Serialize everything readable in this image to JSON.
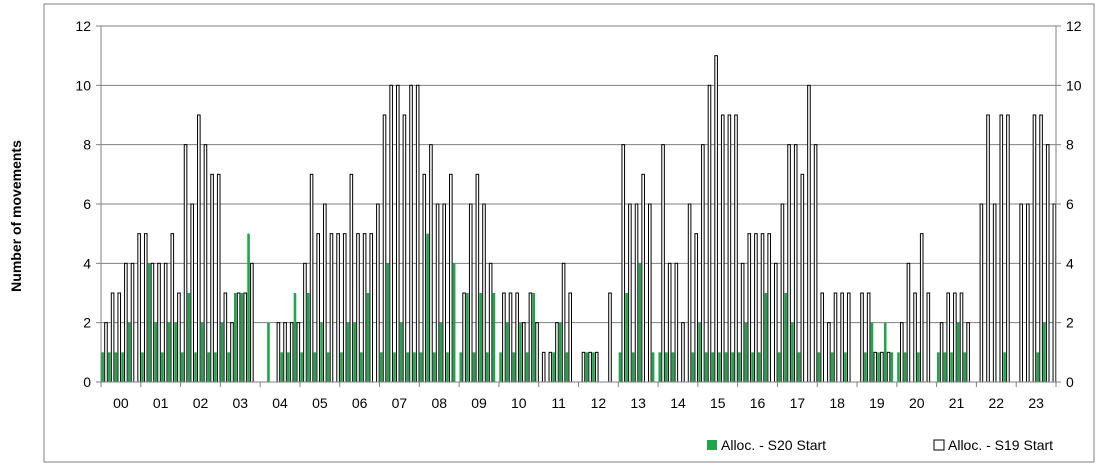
{
  "colors": {
    "s20_fill": "#1fa64a",
    "s19_fill": "#ffffff",
    "s19_stroke": "#000000",
    "axis": "#808080",
    "grid": "#808080"
  },
  "chart_data": {
    "type": "bar",
    "ylabel": "Number of movements",
    "ylim": [
      0,
      12
    ],
    "yticks": [
      0,
      2,
      4,
      6,
      8,
      10,
      12
    ],
    "secondary_yticks": [
      0,
      2,
      4,
      6,
      8,
      10,
      12
    ],
    "grid": "horizontal",
    "legend": "bottom-right",
    "categories": [
      "00",
      "01",
      "02",
      "03",
      "04",
      "05",
      "06",
      "07",
      "08",
      "09",
      "10",
      "11",
      "12",
      "13",
      "14",
      "15",
      "16",
      "17",
      "18",
      "19",
      "20",
      "21",
      "22",
      "23"
    ],
    "slots_per_category": 12,
    "series": [
      {
        "name": "Alloc. - S20 Start",
        "values": [
          [
            1,
            0,
            1,
            0,
            1,
            0,
            1,
            0,
            2,
            0,
            0,
            0
          ],
          [
            1,
            0,
            4,
            0,
            2,
            0,
            1,
            0,
            2,
            0,
            2,
            0
          ],
          [
            1,
            0,
            3,
            0,
            1,
            0,
            2,
            0,
            1,
            0,
            1,
            0
          ],
          [
            2,
            0,
            1,
            0,
            3,
            0,
            3,
            0,
            5,
            0,
            0,
            0
          ],
          [
            0,
            0,
            2,
            0,
            0,
            0,
            1,
            0,
            1,
            0,
            3,
            0
          ],
          [
            1,
            0,
            3,
            0,
            1,
            0,
            2,
            0,
            1,
            0,
            0,
            0
          ],
          [
            1,
            0,
            2,
            0,
            2,
            0,
            1,
            0,
            3,
            0,
            0,
            0
          ],
          [
            1,
            0,
            4,
            0,
            1,
            0,
            2,
            0,
            1,
            0,
            1,
            0
          ],
          [
            1,
            0,
            5,
            0,
            1,
            0,
            2,
            0,
            1,
            0,
            4,
            0
          ],
          [
            1,
            0,
            3,
            0,
            1,
            0,
            3,
            0,
            1,
            0,
            3,
            0
          ],
          [
            1,
            0,
            2,
            0,
            1,
            0,
            2,
            0,
            1,
            0,
            3,
            0
          ],
          [
            0,
            0,
            0,
            0,
            1,
            0,
            2,
            0,
            1,
            0,
            0,
            0
          ],
          [
            0,
            0,
            1,
            0,
            1,
            0,
            0,
            0,
            0,
            0,
            0,
            0
          ],
          [
            1,
            0,
            3,
            0,
            1,
            0,
            4,
            0,
            0,
            0,
            1,
            0
          ],
          [
            1,
            0,
            1,
            0,
            1,
            0,
            0,
            0,
            0,
            0,
            1,
            0
          ],
          [
            2,
            0,
            1,
            0,
            1,
            0,
            1,
            0,
            1,
            0,
            1,
            0
          ],
          [
            1,
            0,
            2,
            0,
            1,
            0,
            1,
            0,
            3,
            0,
            0,
            0
          ],
          [
            1,
            0,
            3,
            0,
            2,
            0,
            1,
            0,
            0,
            0,
            0,
            0
          ],
          [
            1,
            0,
            0,
            0,
            1,
            0,
            0,
            0,
            1,
            0,
            0,
            0
          ],
          [
            0,
            0,
            1,
            0,
            2,
            0,
            1,
            0,
            2,
            0,
            1,
            0
          ],
          [
            1,
            0,
            1,
            0,
            0,
            0,
            1,
            0,
            0,
            0,
            0,
            0
          ],
          [
            1,
            0,
            1,
            0,
            1,
            0,
            2,
            0,
            1,
            0,
            0,
            0
          ],
          [
            0,
            0,
            0,
            0,
            0,
            0,
            0,
            0,
            1,
            0,
            0,
            0
          ],
          [
            0,
            0,
            0,
            0,
            0,
            0,
            1,
            0,
            2,
            0,
            0,
            0
          ]
        ]
      },
      {
        "name": "Alloc. - S19 Start",
        "values": [
          [
            0,
            2,
            0,
            3,
            0,
            3,
            0,
            4,
            0,
            4,
            0,
            5
          ],
          [
            0,
            5,
            0,
            4,
            0,
            4,
            0,
            4,
            0,
            5,
            0,
            3
          ],
          [
            0,
            8,
            0,
            6,
            0,
            9,
            0,
            8,
            0,
            7,
            0,
            7
          ],
          [
            0,
            3,
            0,
            2,
            0,
            3,
            0,
            3,
            0,
            4,
            0,
            0
          ],
          [
            0,
            0,
            0,
            0,
            0,
            2,
            0,
            2,
            0,
            2,
            0,
            2
          ],
          [
            0,
            4,
            0,
            7,
            0,
            5,
            0,
            6,
            0,
            5,
            0,
            5
          ],
          [
            0,
            5,
            0,
            7,
            0,
            5,
            0,
            5,
            0,
            5,
            0,
            6
          ],
          [
            0,
            9,
            0,
            10,
            0,
            10,
            0,
            9,
            0,
            10,
            0,
            10
          ],
          [
            0,
            7,
            0,
            8,
            0,
            6,
            0,
            6,
            0,
            7,
            0,
            0
          ],
          [
            0,
            3,
            0,
            6,
            0,
            7,
            0,
            6,
            0,
            4,
            0,
            0
          ],
          [
            0,
            3,
            0,
            3,
            0,
            3,
            0,
            2,
            0,
            3,
            0,
            2
          ],
          [
            0,
            1,
            0,
            1,
            0,
            2,
            0,
            4,
            0,
            3,
            0,
            0
          ],
          [
            0,
            1,
            0,
            1,
            0,
            1,
            0,
            0,
            0,
            3,
            0,
            0
          ],
          [
            0,
            8,
            0,
            6,
            0,
            6,
            0,
            7,
            0,
            6,
            0,
            0
          ],
          [
            0,
            8,
            0,
            4,
            0,
            4,
            0,
            2,
            0,
            6,
            0,
            5
          ],
          [
            0,
            8,
            0,
            10,
            0,
            11,
            0,
            9,
            0,
            9,
            0,
            9
          ],
          [
            0,
            4,
            0,
            5,
            0,
            5,
            0,
            5,
            0,
            5,
            0,
            4
          ],
          [
            0,
            6,
            0,
            8,
            0,
            8,
            0,
            7,
            0,
            10,
            0,
            8
          ],
          [
            0,
            3,
            0,
            2,
            0,
            3,
            0,
            3,
            0,
            3,
            0,
            0
          ],
          [
            0,
            3,
            0,
            3,
            0,
            1,
            0,
            1,
            0,
            1,
            0,
            0
          ],
          [
            0,
            2,
            0,
            4,
            0,
            3,
            0,
            5,
            0,
            3,
            0,
            0
          ],
          [
            0,
            2,
            0,
            3,
            0,
            3,
            0,
            3,
            0,
            2,
            0,
            0
          ],
          [
            0,
            6,
            0,
            9,
            0,
            6,
            0,
            9,
            0,
            9,
            0,
            0
          ],
          [
            0,
            6,
            0,
            6,
            0,
            9,
            0,
            9,
            0,
            8,
            0,
            6
          ]
        ]
      }
    ]
  }
}
